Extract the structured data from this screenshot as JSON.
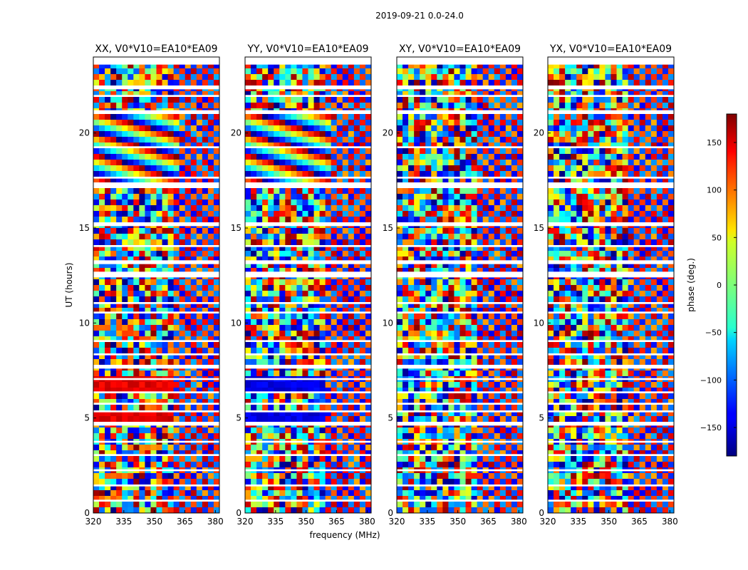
{
  "figure": {
    "suptitle": "2019-09-21 0.0-24.0",
    "xlabel": "frequency (MHz)",
    "ylabel": "UT (hours)"
  },
  "chart_data": {
    "type": "heatmap",
    "colormap": "jet",
    "x_range": [
      320,
      382
    ],
    "y_range": [
      0,
      24
    ],
    "x_ticks": [
      320,
      335,
      350,
      365,
      380
    ],
    "y_ticks": [
      0,
      5,
      10,
      15,
      20
    ],
    "panels": [
      {
        "title": "XX, V0*V10=EA10*EA09"
      },
      {
        "title": "YY, V0*V10=EA10*EA09"
      },
      {
        "title": "XY, V0*V10=EA10*EA09"
      },
      {
        "title": "YX, V0*V10=EA10*EA09"
      }
    ],
    "colorbar": {
      "label": "phase (deg.)",
      "range": [
        -180,
        180
      ],
      "ticks": [
        150,
        100,
        50,
        0,
        -50,
        -100,
        -150
      ],
      "tick_labels": [
        "150",
        "100",
        "50",
        "0",
        "−50",
        "−100",
        "−150"
      ]
    },
    "gaps_hours": [
      [
        22.3,
        22.5
      ],
      [
        21.9,
        22.0
      ],
      [
        21.0,
        21.2
      ],
      [
        19.2,
        19.3
      ],
      [
        17.6,
        17.7
      ],
      [
        17.1,
        17.4
      ],
      [
        15.1,
        15.3
      ],
      [
        14.0,
        14.1
      ],
      [
        13.1,
        13.3
      ],
      [
        12.4,
        12.7
      ],
      [
        11.0,
        11.1
      ],
      [
        10.5,
        10.6
      ],
      [
        9.0,
        9.1
      ],
      [
        8.3,
        8.4
      ],
      [
        7.6,
        7.8
      ],
      [
        7.0,
        7.1
      ],
      [
        6.3,
        6.4
      ],
      [
        5.7,
        5.8
      ],
      [
        5.3,
        5.4
      ],
      [
        4.6,
        4.8
      ],
      [
        3.7,
        3.8
      ],
      [
        3.0,
        3.1
      ],
      [
        2.2,
        2.3
      ],
      [
        1.4,
        1.5
      ],
      [
        0.6,
        0.7
      ]
    ]
  }
}
